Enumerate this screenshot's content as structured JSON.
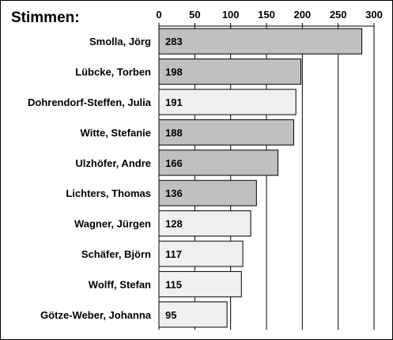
{
  "chart_data": {
    "type": "bar",
    "orientation": "horizontal",
    "title": "Stimmen:",
    "categories": [
      "Smolla, Jörg",
      "Lübcke, Torben",
      "Dohrendorf-Steffen, Julia",
      "Witte, Stefanie",
      "Ulzhöfer, Andre",
      "Lichters, Thomas",
      "Wagner, Jürgen",
      "Schäfer, Björn",
      "Wolff, Stefan",
      "Götze-Weber, Johanna"
    ],
    "values": [
      283,
      198,
      191,
      188,
      166,
      136,
      128,
      117,
      115,
      95
    ],
    "value_labels": [
      "283",
      "198",
      "191",
      "188",
      "166",
      "136",
      "128",
      "117",
      "115",
      "95"
    ],
    "bar_colors": [
      "#c0c0c0",
      "#c0c0c0",
      "#f0f0f0",
      "#c0c0c0",
      "#c0c0c0",
      "#c0c0c0",
      "#f0f0f0",
      "#f0f0f0",
      "#f0f0f0",
      "#f0f0f0"
    ],
    "xlim": [
      0,
      300
    ],
    "xticks": [
      0,
      50,
      100,
      150,
      200,
      250,
      300
    ],
    "xtick_labels": [
      "0",
      "50",
      "100",
      "150",
      "200",
      "250",
      "300"
    ],
    "xaxis_position": "top",
    "grid": true,
    "legend": "none"
  }
}
